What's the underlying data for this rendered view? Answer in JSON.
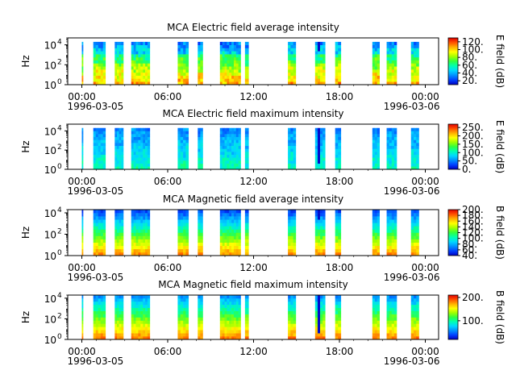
{
  "colormap": [
    "#0000c0",
    "#0040ff",
    "#0090ff",
    "#00d8ff",
    "#00ffb0",
    "#30ff40",
    "#a0ff00",
    "#ffff00",
    "#ffb000",
    "#ff5000",
    "#e00000"
  ],
  "chart_data": [
    {
      "type": "heatmap",
      "title": "MCA  Electric field average intensity",
      "ylabel": "Hz",
      "cbar_label": "E field (dB)",
      "ylim": [
        1,
        50000
      ],
      "yscale": "log",
      "y_ticks": [
        {
          "value": 1,
          "label": "10",
          "exp": "0"
        },
        {
          "value": 100,
          "label": "10",
          "exp": "2"
        },
        {
          "value": 10000,
          "label": "10",
          "exp": "4"
        }
      ],
      "x_ticks": [
        "00:00",
        "06:00",
        "12:00",
        "18:00",
        "00:00"
      ],
      "x_dates": [
        "1996-03-05",
        "1996-03-06"
      ],
      "cbar_range": [
        10,
        130
      ],
      "cbar_ticks": [
        {
          "value": 20,
          "label": "20."
        },
        {
          "value": 40,
          "label": "40."
        },
        {
          "value": 60,
          "label": "60."
        },
        {
          "value": 80,
          "label": "80."
        },
        {
          "value": 100,
          "label": "100."
        },
        {
          "value": 120,
          "label": "120."
        }
      ],
      "pattern": "efield_avg"
    },
    {
      "type": "heatmap",
      "title": "MCA  Electric field maximum intensity",
      "ylabel": "Hz",
      "cbar_label": "E field (dB)",
      "ylim": [
        1,
        50000
      ],
      "yscale": "log",
      "y_ticks": [
        {
          "value": 1,
          "label": "10",
          "exp": "0"
        },
        {
          "value": 100,
          "label": "10",
          "exp": "2"
        },
        {
          "value": 10000,
          "label": "10",
          "exp": "4"
        }
      ],
      "x_ticks": [
        "00:00",
        "06:00",
        "12:00",
        "18:00",
        "00:00"
      ],
      "x_dates": [
        "1996-03-05",
        "1996-03-06"
      ],
      "cbar_range": [
        0,
        270
      ],
      "cbar_ticks": [
        {
          "value": 0,
          "label": "0."
        },
        {
          "value": 50,
          "label": "50."
        },
        {
          "value": 100,
          "label": "100."
        },
        {
          "value": 150,
          "label": "150."
        },
        {
          "value": 200,
          "label": "200."
        },
        {
          "value": 250,
          "label": "250."
        }
      ],
      "pattern": "efield_max"
    },
    {
      "type": "heatmap",
      "title": "MCA  Magnetic field average intensity",
      "ylabel": "Hz",
      "cbar_label": "B field (dB)",
      "ylim": [
        1,
        20000
      ],
      "yscale": "log",
      "y_ticks": [
        {
          "value": 1,
          "label": "10",
          "exp": "0"
        },
        {
          "value": 100,
          "label": "10",
          "exp": "2"
        },
        {
          "value": 10000,
          "label": "10",
          "exp": "4"
        }
      ],
      "x_ticks": [
        "00:00",
        "06:00",
        "12:00",
        "18:00",
        "00:00"
      ],
      "x_dates": [
        "1996-03-05",
        "1996-03-06"
      ],
      "cbar_range": [
        40,
        200
      ],
      "cbar_ticks": [
        {
          "value": 40,
          "label": "40."
        },
        {
          "value": 60,
          "label": "60."
        },
        {
          "value": 80,
          "label": "80."
        },
        {
          "value": 100,
          "label": "100."
        },
        {
          "value": 120,
          "label": "120."
        },
        {
          "value": 140,
          "label": "140."
        },
        {
          "value": 160,
          "label": "160."
        },
        {
          "value": 180,
          "label": "180."
        },
        {
          "value": 200,
          "label": "200."
        }
      ],
      "pattern": "bfield_avg"
    },
    {
      "type": "heatmap",
      "title": "MCA  Magnetic field maximum intensity",
      "ylabel": "Hz",
      "cbar_label": "B field (dB)",
      "ylim": [
        1,
        20000
      ],
      "yscale": "log",
      "y_ticks": [
        {
          "value": 1,
          "label": "10",
          "exp": "0"
        },
        {
          "value": 100,
          "label": "10",
          "exp": "2"
        },
        {
          "value": 10000,
          "label": "10",
          "exp": "4"
        }
      ],
      "x_ticks": [
        "00:00",
        "06:00",
        "12:00",
        "18:00",
        "00:00"
      ],
      "x_dates": [
        "1996-03-05",
        "1996-03-06"
      ],
      "cbar_range": [
        20,
        210
      ],
      "cbar_ticks": [
        {
          "value": 100,
          "label": "100."
        },
        {
          "value": 200,
          "label": "200."
        }
      ],
      "pattern": "bfield_max"
    }
  ],
  "data_intervals_hours": [
    [
      0.0,
      0.06
    ],
    [
      0.8,
      1.65
    ],
    [
      2.3,
      2.9
    ],
    [
      3.45,
      4.75
    ],
    [
      6.7,
      7.45
    ],
    [
      8.1,
      8.45
    ],
    [
      9.65,
      11.1
    ],
    [
      11.4,
      11.65
    ],
    [
      14.4,
      14.95
    ],
    [
      16.3,
      17.0
    ],
    [
      17.7,
      18.1
    ],
    [
      20.3,
      20.8
    ],
    [
      21.3,
      22.0
    ],
    [
      23.0,
      23.55
    ]
  ]
}
